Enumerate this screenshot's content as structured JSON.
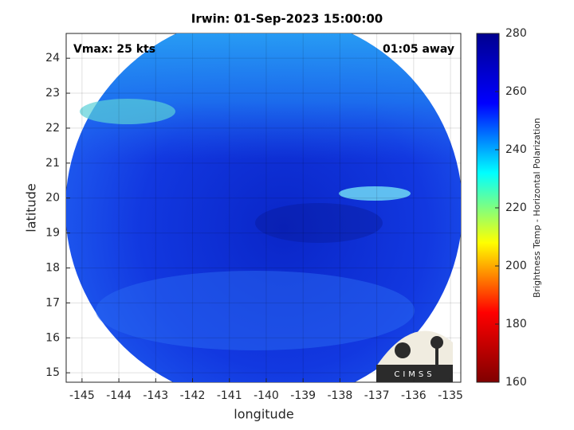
{
  "chart_data": {
    "type": "heatmap",
    "title": "Irwin: 01-Sep-2023 15:00:00",
    "xlabel": "longitude",
    "ylabel": "latitude",
    "xlim": [
      -145.43,
      -134.72
    ],
    "ylim": [
      14.73,
      24.71
    ],
    "xticks": [
      -145,
      -144,
      -143,
      -142,
      -141,
      -140,
      -139,
      -138,
      -137,
      -136,
      -135
    ],
    "yticks": [
      15,
      16,
      17,
      18,
      19,
      20,
      21,
      22,
      23,
      24
    ],
    "grid": true,
    "annotations": [
      "Vmax: 25 kts",
      "01:05 away"
    ],
    "logo_text": "CIMSS",
    "colorbar": {
      "label": "Brightness Temp - Horizontal Polarization",
      "lim": [
        160,
        280
      ],
      "ticks": [
        160,
        180,
        200,
        220,
        240,
        260,
        280
      ],
      "colors": [
        "#800000",
        "#ff0000",
        "#ffff00",
        "#00ffff",
        "#0000ff",
        "#00008f"
      ]
    }
  }
}
